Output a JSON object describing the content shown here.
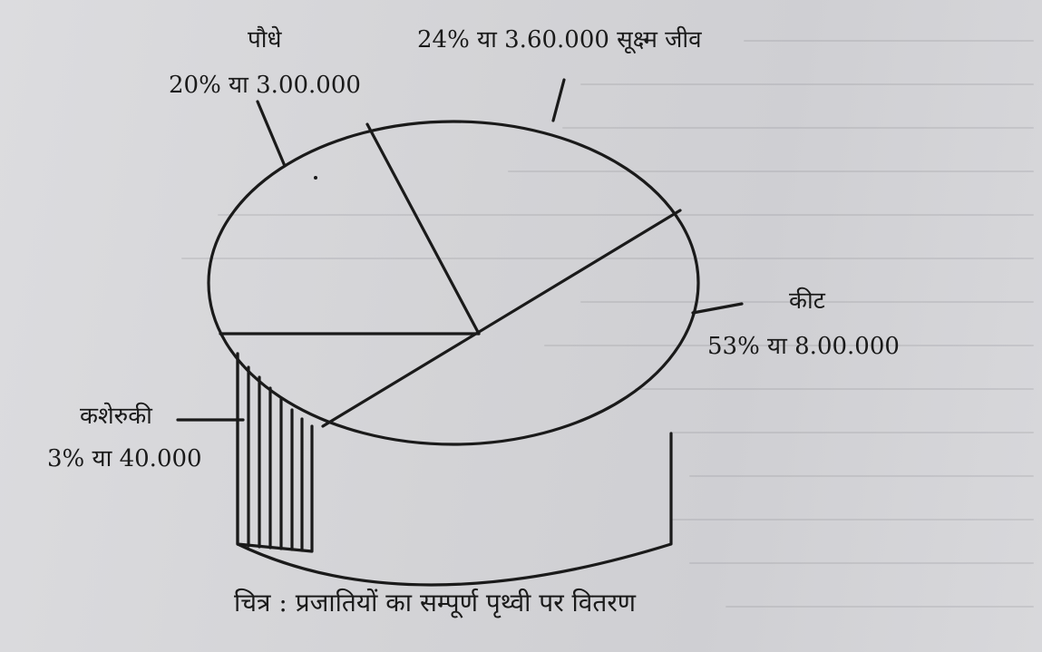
{
  "chart_data": {
    "type": "pie",
    "style": "3d",
    "categories": [
      "पौधे",
      "सूक्ष्म जीव",
      "कीट",
      "कशेरुकी"
    ],
    "values": [
      300000,
      360000,
      800000,
      40000
    ],
    "percents": [
      20,
      24,
      53,
      3
    ],
    "labels": {
      "plants_name": "पौधे",
      "plants_value": "20% या 3.00.000",
      "microbes_value": "24% या 3.60.000 सूक्ष्म जीव",
      "insects_name": "कीट",
      "insects_value": "53% या 8.00.000",
      "vertebrates_name": "कशेरुकी",
      "vertebrates_value": "3% या 40.000"
    },
    "caption": "चित्र : प्रजातियों का सम्पूर्ण पृथ्वी पर वितरण",
    "colors": {
      "ink": "#1a1a1a",
      "paper": "#d6d6d9"
    }
  }
}
